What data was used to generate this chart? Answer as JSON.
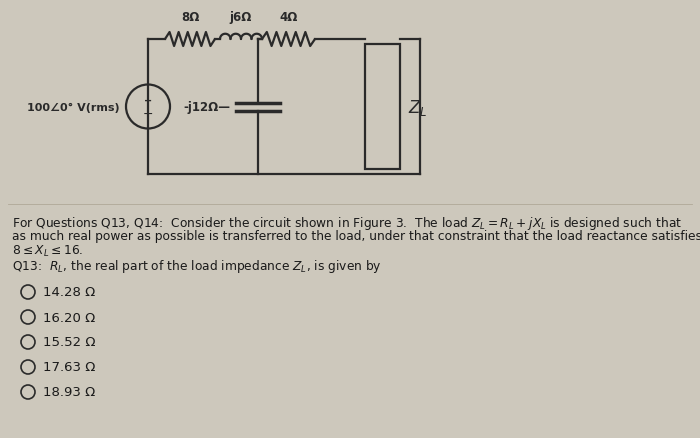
{
  "bg_color": "#cdc8bc",
  "fig_width": 7.0,
  "fig_height": 4.39,
  "text_color": "#1a1a1a",
  "circuit_color": "#2a2a2a",
  "font_size_question": 8.8,
  "font_size_choices": 9.5,
  "font_size_circuit": 8.5,
  "choices": [
    "14.28 Ω",
    "16.20 Ω",
    "15.52 Ω",
    "17.63 Ω",
    "18.93 Ω"
  ],
  "vsrc_label": "100∠0° V(rms)",
  "r1_label": "8Ω",
  "l1_label": "j6Ω",
  "r2_label": "4Ω",
  "c1_label": "-j12Ω",
  "zl_label": "Z_L",
  "q_line1": "For Questions Q13, Q14:  Consider the circuit shown in Figure 3.  The load $Z_L = R_L + jX_L$ is designed such that",
  "q_line2": "as much real power as possible is transferred to the load, under that constraint that the load reactance satisfies",
  "q_line3": "$8 \\leq X_L \\leq 16$.",
  "q_line4": "Q13:  $R_L$, the real part of the load impedance $Z_L$, is given by"
}
